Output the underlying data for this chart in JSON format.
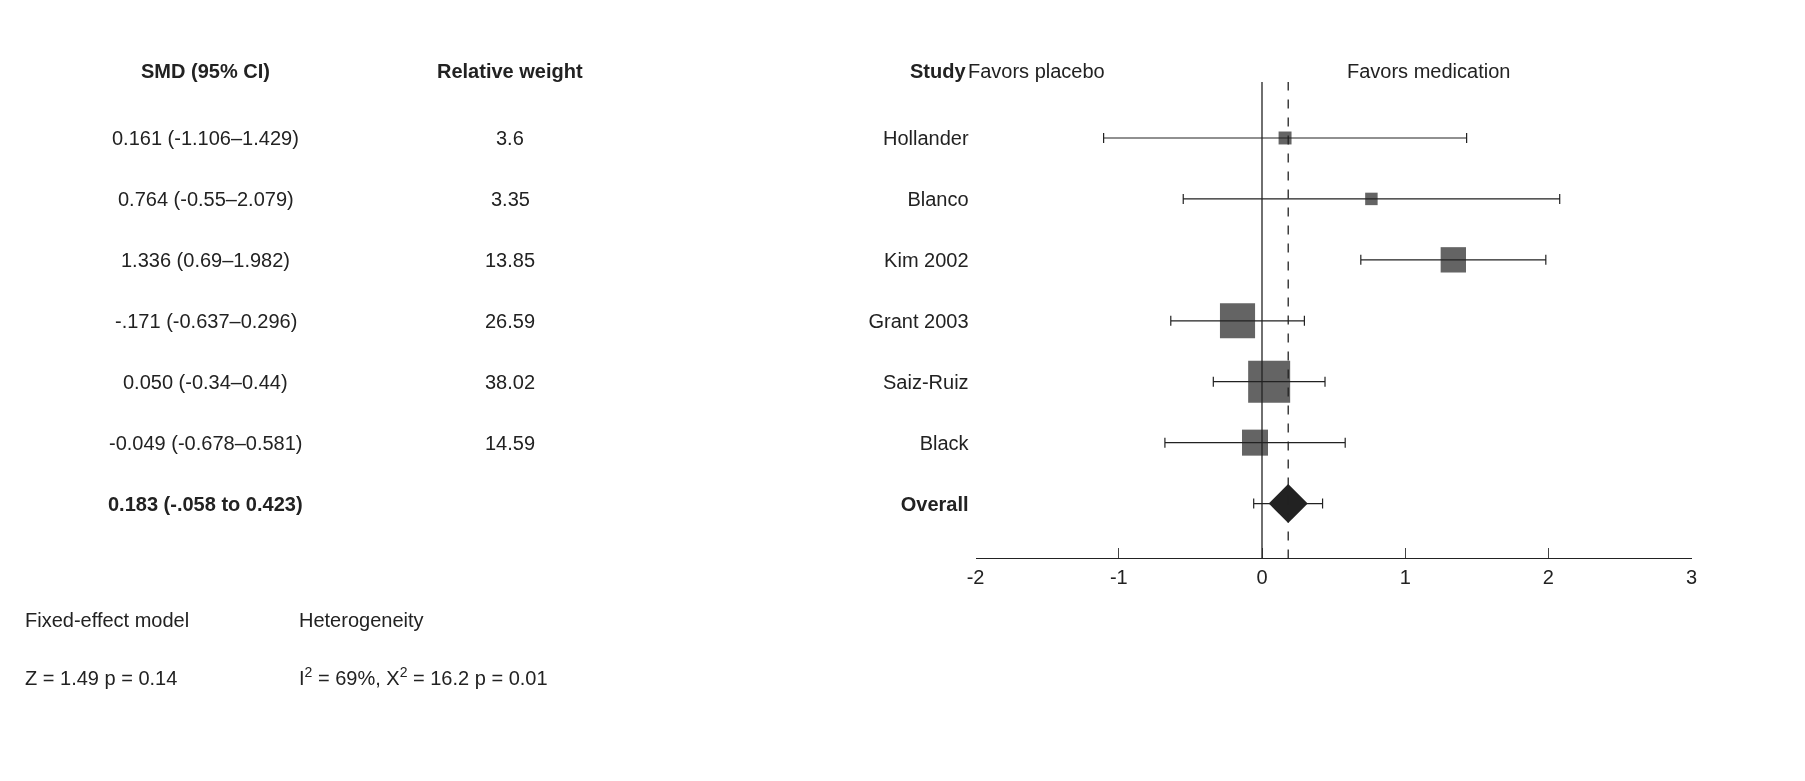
{
  "chart_data": {
    "type": "scatter",
    "orientation": "horizontal",
    "categories": [
      "Hollander",
      "Blanco",
      "Kim 2002",
      "Grant 2003",
      "Saiz-Ruiz",
      "Black",
      "Overall"
    ],
    "series": [
      {
        "type": "bubble",
        "marker": "square",
        "color": "#222222",
        "values": [
          0.161,
          0.764,
          1.336,
          -0.171,
          0.05,
          -0.049,
          null
        ],
        "errors": [
          [
            -1.106,
            1.429
          ],
          [
            -0.55,
            2.079
          ],
          [
            0.69,
            1.982
          ],
          [
            -0.637,
            0.296
          ],
          [
            -0.34,
            0.44
          ],
          [
            -0.678,
            0.581
          ],
          null
        ],
        "sizes": [
          0.095,
          0.088,
          0.364,
          0.699,
          1,
          0.384,
          null
        ]
      },
      {
        "marker": "diamond",
        "color": "#222222",
        "values": [
          null,
          null,
          null,
          null,
          null,
          null,
          0.183
        ],
        "errors": [
          null,
          null,
          null,
          null,
          null,
          null,
          [
            -0.058,
            0.423
          ]
        ]
      }
    ],
    "xlim": [
      -2,
      3
    ],
    "xticks": [
      -2,
      -1,
      0,
      1,
      2,
      3
    ],
    "ref_lines": [
      {
        "axis": "x",
        "value": 0,
        "line_style": "solid",
        "color": "#222222"
      },
      {
        "axis": "x",
        "value": 0.183,
        "line_style": "dashed",
        "color": "#222222"
      }
    ],
    "annotations": [
      "Study",
      "SMD (95% CI)",
      "Relative weight",
      "Favors placebo",
      "Favors medication",
      "Fixed-effect model",
      "Heterogeneity",
      "Z = 1.49 p = 0.14",
      "I$^{2}$ = 69%, X$^{2}$ = 16.2 p = 0.01",
      "0.161 (-1.106–1.429)",
      "0.764 (-0.55–2.079)",
      "1.336 (0.69–1.982)",
      "-.171 (-0.637–0.296)",
      "0.050 (-0.34–0.44)",
      "-0.049 (-0.678–0.581)",
      "0.183 (-.058 to 0.423)",
      "3.6",
      "3.35",
      "13.85",
      "26.59",
      "38.02",
      "14.59"
    ]
  }
}
